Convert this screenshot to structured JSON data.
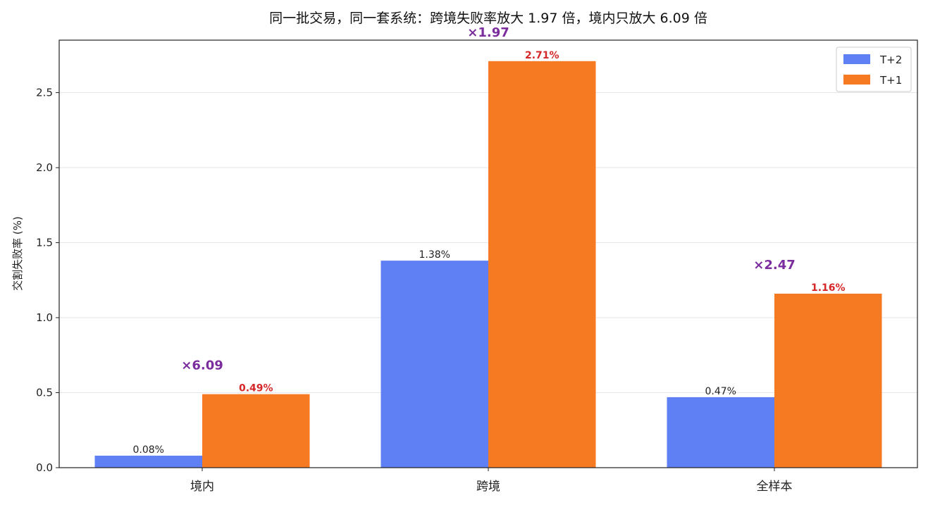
{
  "chart_data": {
    "type": "bar",
    "title": "同一批交易，同一套系统：跨境失败率放大 1.97 倍，境内只放大 6.09 倍",
    "xlabel": "",
    "ylabel": "交割失败率 (%)",
    "categories": [
      "境内",
      "跨境",
      "全样本"
    ],
    "series": [
      {
        "name": "T+2",
        "values": [
          0.08,
          1.38,
          0.47
        ],
        "labels": [
          "0.08%",
          "1.38%",
          "0.47%"
        ],
        "color": "#5f7ff5"
      },
      {
        "name": "T+1",
        "values": [
          0.49,
          2.71,
          1.16
        ],
        "labels": [
          "0.49%",
          "2.71%",
          "1.16%"
        ],
        "color": "#f57a22"
      }
    ],
    "ratios": [
      "×6.09",
      "×1.97",
      "×2.47"
    ],
    "ratio_color": "#7b2d9e",
    "t1_label_color": "#d62728",
    "ylim": [
      0,
      2.85
    ],
    "yticks": [
      0.0,
      0.5,
      1.0,
      1.5,
      2.0,
      2.5
    ],
    "ytick_labels": [
      "0.0",
      "0.5",
      "1.0",
      "1.5",
      "2.0",
      "2.5"
    ],
    "grid": "horizontal",
    "legend_position": "top-right"
  }
}
